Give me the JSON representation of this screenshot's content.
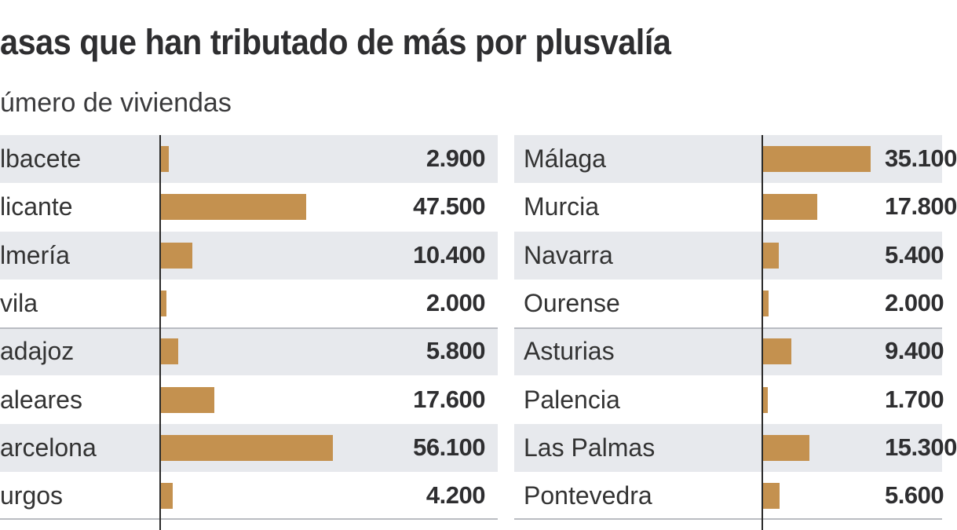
{
  "chart_data": {
    "type": "bar",
    "title": "asas que han tributado de más por plusvalía",
    "subtitle": "úmero de viviendas",
    "bar_color": "#c4914f",
    "row_shade_color": "#e7e9ed",
    "panels": [
      {
        "categories": [
          "lbacete",
          "licante",
          "lmería",
          "vila",
          "adajoz",
          "aleares",
          "arcelona",
          "urgos"
        ],
        "values": [
          2900,
          47500,
          10400,
          2000,
          5800,
          17600,
          56100,
          4200
        ],
        "value_labels": [
          "2.900",
          "47.500",
          "10.400",
          "2.000",
          "5.800",
          "17.600",
          "56.100",
          "4.200"
        ]
      },
      {
        "categories": [
          "Málaga",
          "Murcia",
          "Navarra",
          "Ourense",
          "Asturias",
          "Palencia",
          "Las Palmas",
          "Pontevedra"
        ],
        "values": [
          35100,
          17800,
          5400,
          2000,
          9400,
          1700,
          15300,
          5600
        ],
        "value_labels": [
          "35.100",
          "17.800",
          "5.400",
          "2.000",
          "9.400",
          "1.700",
          "15.300",
          "5.600"
        ]
      }
    ]
  }
}
